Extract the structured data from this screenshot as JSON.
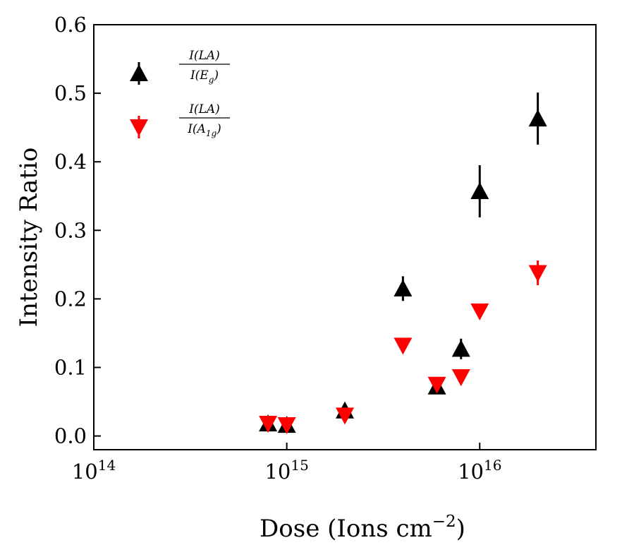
{
  "chart_data": {
    "type": "scatter",
    "title": "",
    "xlabel": "Dose (Ions cm",
    "xlabel_sup": "−2",
    "xlabel_close": ")",
    "ylabel": "Intensity Ratio",
    "xscale": "log",
    "xlim": [
      100000000000000.0,
      4e+16
    ],
    "ylim": [
      -0.02,
      0.6
    ],
    "x_ticks": [
      {
        "value": 100000000000000.0,
        "base": "10",
        "exp": "14"
      },
      {
        "value": 1000000000000000.0,
        "base": "10",
        "exp": "15"
      },
      {
        "value": 1e+16,
        "base": "10",
        "exp": "16"
      }
    ],
    "y_ticks": [
      {
        "value": 0.0,
        "label": "0.0"
      },
      {
        "value": 0.1,
        "label": "0.1"
      },
      {
        "value": 0.2,
        "label": "0.2"
      },
      {
        "value": 0.3,
        "label": "0.3"
      },
      {
        "value": 0.4,
        "label": "0.4"
      },
      {
        "value": 0.5,
        "label": "0.5"
      },
      {
        "value": 0.6,
        "label": "0.6"
      }
    ],
    "legend_position": "top-left",
    "series": [
      {
        "name": "I(LA)/I(Eg)",
        "legend_num": "I(LA)",
        "legend_den_base": "I(E",
        "legend_den_sub": "g",
        "legend_den_close": ")",
        "marker": "triangle-up",
        "color": "#000000",
        "points": [
          {
            "x": 800000000000000.0,
            "y": 0.018,
            "err": 0.006
          },
          {
            "x": 1000000000000000.0,
            "y": 0.016,
            "err": 0.006
          },
          {
            "x": 2000000000000000.0,
            "y": 0.037,
            "err": 0.006
          },
          {
            "x": 4000000000000000.0,
            "y": 0.215,
            "err": 0.018
          },
          {
            "x": 6000000000000000.0,
            "y": 0.072,
            "err": 0.006
          },
          {
            "x": 8000000000000000.0,
            "y": 0.127,
            "err": 0.015
          },
          {
            "x": 1e+16,
            "y": 0.357,
            "err": 0.038
          },
          {
            "x": 2e+16,
            "y": 0.463,
            "err": 0.038
          }
        ]
      },
      {
        "name": "I(LA)/I(A1g)",
        "legend_num": "I(LA)",
        "legend_den_base": "I(A",
        "legend_den_sub": "1g",
        "legend_den_close": ")",
        "marker": "triangle-down",
        "color": "#ff0000",
        "points": [
          {
            "x": 800000000000000.0,
            "y": 0.018,
            "err": 0.004
          },
          {
            "x": 1000000000000000.0,
            "y": 0.016,
            "err": 0.004
          },
          {
            "x": 2000000000000000.0,
            "y": 0.03,
            "err": 0.004
          },
          {
            "x": 4000000000000000.0,
            "y": 0.132,
            "err": 0.004
          },
          {
            "x": 6000000000000000.0,
            "y": 0.075,
            "err": 0.004
          },
          {
            "x": 8000000000000000.0,
            "y": 0.086,
            "err": 0.004
          },
          {
            "x": 1e+16,
            "y": 0.182,
            "err": 0.01
          },
          {
            "x": 2e+16,
            "y": 0.238,
            "err": 0.018
          }
        ]
      }
    ]
  }
}
